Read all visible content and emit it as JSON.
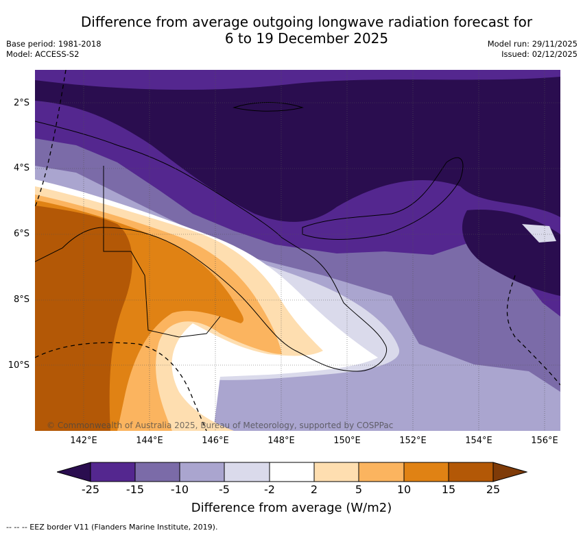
{
  "title_line1": "Difference from average outgoing longwave radiation forecast for",
  "title_line2": "6 to 19 December 2025",
  "base_period": "Base period: 1981-2018",
  "model": "Model: ACCESS-S2",
  "model_run": "Model run: 29/11/2025",
  "issued": "Issued: 02/12/2025",
  "lat_labels": [
    "2°S",
    "4°S",
    "6°S",
    "8°S",
    "10°S"
  ],
  "lon_labels": [
    "142°E",
    "144°E",
    "146°E",
    "148°E",
    "150°E",
    "152°E",
    "154°E",
    "156°E"
  ],
  "copyright": "© Commonwealth of Australia 2025, Bureau of Meteorology, supported by COSPPac",
  "colorbar": {
    "ticks": [
      "-25",
      "-15",
      "-10",
      "-5",
      "-2",
      "2",
      "5",
      "10",
      "15",
      "25"
    ],
    "colors": [
      "#2a0d4f",
      "#54278f",
      "#7b6ba8",
      "#aaa5cf",
      "#dadaeb",
      "#ffffff",
      "#fedeb0",
      "#fbb45f",
      "#e08214",
      "#b35806",
      "#7f3b08"
    ],
    "title": "Difference from average (W/m2)"
  },
  "footnote": "--  --  -- EEZ border V11 (Flanders Marine Institute, 2019)."
}
